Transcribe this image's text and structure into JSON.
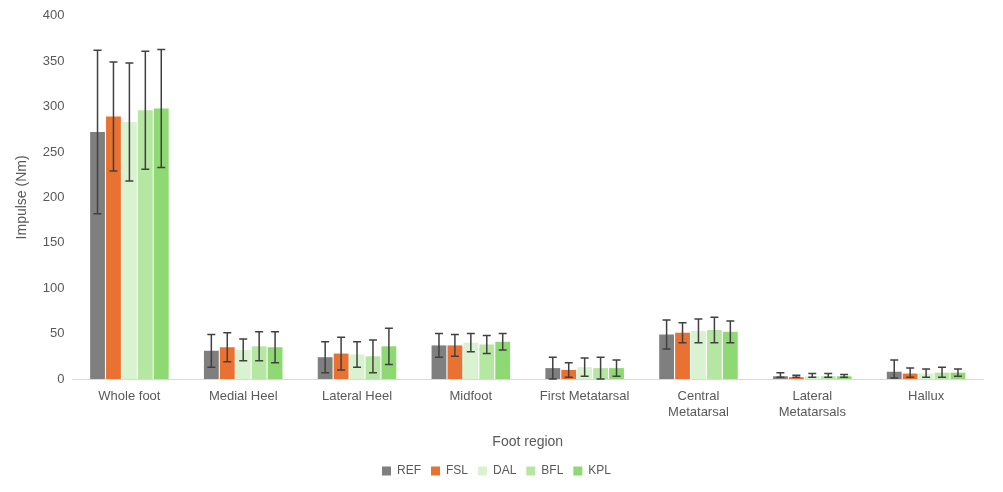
{
  "chart_data": {
    "type": "bar",
    "xlabel": "Foot region",
    "ylabel": "Impulse (Nm)",
    "categories": [
      "Whole foot",
      "Medial Heel",
      "Lateral Heel",
      "Midfoot",
      "First Metatarsal",
      "Central Metatarsal",
      "Lateral Metatarsals",
      "Hallux"
    ],
    "series": [
      {
        "name": "REF",
        "color": "#7f7f7f",
        "values": [
          272,
          31,
          24,
          37,
          12,
          49,
          3,
          8
        ],
        "errors": [
          90,
          18,
          17,
          13,
          12,
          16,
          [
            2,
            7
          ],
          [
            1,
            21
          ]
        ]
      },
      {
        "name": "FSL",
        "color": "#e97132",
        "values": [
          289,
          35,
          28,
          37,
          10,
          51,
          2,
          6
        ],
        "errors": [
          60,
          16,
          18,
          12,
          8,
          11,
          [
            2,
            4
          ],
          [
            2,
            12
          ]
        ]
      },
      {
        "name": "DAL",
        "color": "#d9f2d0",
        "values": [
          283,
          32,
          27,
          40,
          13,
          53,
          3,
          6
        ],
        "errors": [
          65,
          12,
          14,
          10,
          10,
          13,
          [
            2,
            6
          ],
          [
            2,
            11
          ]
        ]
      },
      {
        "name": "BFL",
        "color": "#b5e6a2",
        "values": [
          296,
          36,
          25,
          38,
          12,
          54,
          3,
          7
        ],
        "errors": [
          65,
          16,
          18,
          10,
          12,
          14,
          [
            2,
            6
          ],
          [
            2,
            13
          ]
        ]
      },
      {
        "name": "KPL",
        "color": "#8ed973",
        "values": [
          298,
          35,
          36,
          41,
          12,
          52,
          3,
          7
        ],
        "errors": [
          65,
          17,
          20,
          9,
          9,
          12,
          [
            2,
            5
          ],
          4
        ]
      }
    ],
    "ylim": [
      0,
      400
    ],
    "yticks": [
      0,
      50,
      100,
      150,
      200,
      250,
      300,
      350,
      400
    ],
    "grid": false,
    "legend": "bottom"
  }
}
